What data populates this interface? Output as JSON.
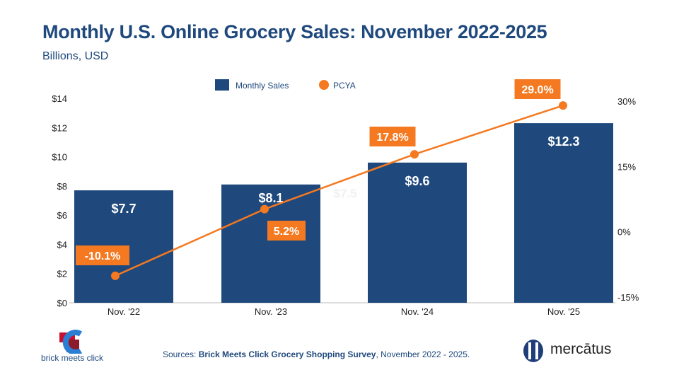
{
  "title": "Monthly U.S. Online Grocery Sales: November 2022-2025",
  "subtitle": "Billions, USD",
  "chart_data": {
    "type": "bar+line",
    "categories": [
      "Nov. '22",
      "Nov. '23",
      "Nov. '24",
      "Nov. '25"
    ],
    "series": [
      {
        "name": "Monthly Sales",
        "type": "bar",
        "axis": "left",
        "values": [
          7.7,
          8.1,
          9.6,
          12.3
        ],
        "labels": [
          "$7.7",
          "$8.1",
          "$9.6",
          "$12.3"
        ],
        "color": "#1f497d"
      },
      {
        "name": "PCYA",
        "type": "line",
        "axis": "right",
        "values": [
          -10.1,
          5.2,
          17.8,
          29.0
        ],
        "labels": [
          "-10.1%",
          "5.2%",
          "17.8%",
          "29.0%"
        ],
        "color": "#f47920"
      }
    ],
    "left_axis": {
      "ylim": [
        0,
        14
      ],
      "ticks": [
        "$0",
        "$2",
        "$4",
        "$6",
        "$8",
        "$10",
        "$12",
        "$14"
      ]
    },
    "right_axis": {
      "ylim": [
        -15,
        30
      ],
      "ticks": [
        "-15%",
        "0%",
        "15%",
        "30%"
      ]
    },
    "ghost_label": "$7.5",
    "legend_position": "top",
    "grid": false
  },
  "footer": {
    "source_prefix": "Sources: ",
    "source_bold": "Brick Meets Click Grocery Shopping Survey",
    "source_suffix": ", November 2022 - 2025.",
    "logo_left": "brick meets click",
    "logo_right": "mercātus"
  }
}
